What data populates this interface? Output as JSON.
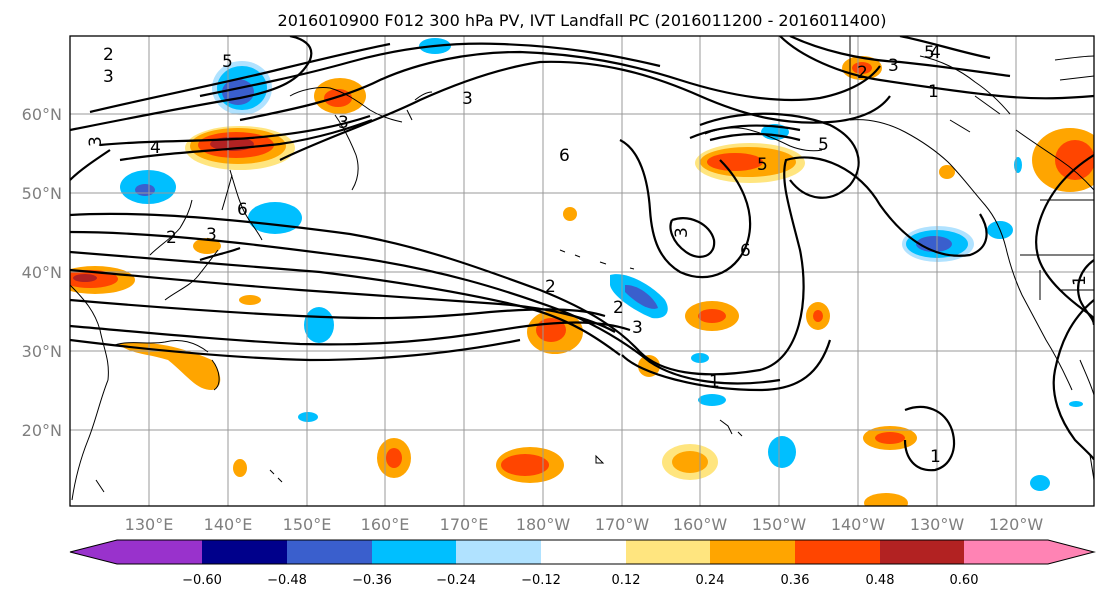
{
  "title": "2016010900 F012 300 hPa PV, IVT Landfall PC (2016011200 - 2016011400)",
  "lat_labels": [
    "60°N",
    "50°N",
    "40°N",
    "30°N",
    "20°N"
  ],
  "lon_labels": [
    "130°E",
    "140°E",
    "150°E",
    "160°E",
    "170°E",
    "180°W",
    "170°W",
    "160°W",
    "150°W",
    "140°W",
    "130°W",
    "120°W"
  ],
  "colorbar": {
    "ticks": [
      "−0.60",
      "−0.48",
      "−0.36",
      "−0.24",
      "−0.12",
      "0.12",
      "0.24",
      "0.36",
      "0.48",
      "0.60"
    ],
    "colors": [
      "#9932cc",
      "#00008b",
      "#3a5fcd",
      "#00bfff",
      "#b0e2ff",
      "#ffffff",
      "#ffe57f",
      "#ffa500",
      "#ff4500",
      "#b22222",
      "#ff83b4"
    ]
  },
  "contour_labels": [
    "2",
    "3",
    "5",
    "3",
    "4",
    "3",
    "6",
    "5",
    "6",
    "3",
    "2",
    "2",
    "1",
    "3",
    "5",
    "2",
    "3",
    "4",
    "5",
    "6",
    "1",
    "1",
    "2",
    "3",
    "3",
    "1"
  ]
}
